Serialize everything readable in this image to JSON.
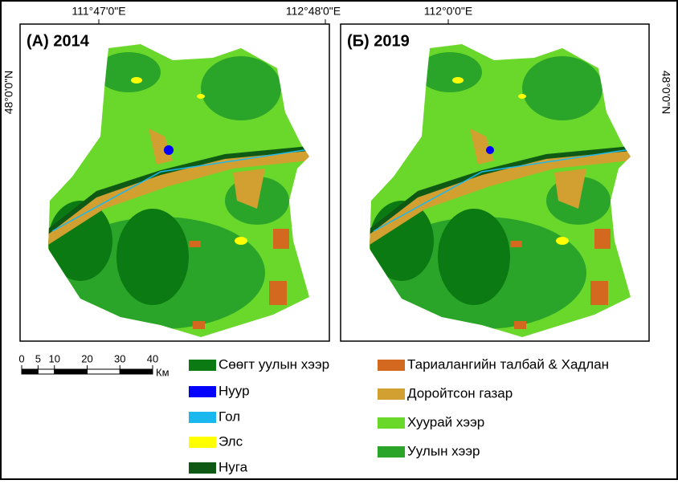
{
  "coordinates": {
    "top_a_left": "111°47'0\"E",
    "top_a_right": "112°48'0\"E",
    "top_b": "112°0'0\"E",
    "left": "48°0'0\"N",
    "right": "48°0'0\"N"
  },
  "panels": [
    {
      "title": "(А) 2014"
    },
    {
      "title": "(Б) 2019"
    }
  ],
  "scale_bar": {
    "ticks": [
      0,
      5,
      10,
      20,
      30,
      40
    ],
    "unit": "Км"
  },
  "legend": [
    {
      "label": "Сөөгт уулын хээр",
      "color": "#0b7a12"
    },
    {
      "label": "Нуур",
      "color": "#0000ff"
    },
    {
      "label": "Гол",
      "color": "#1ab8ee"
    },
    {
      "label": "Элс",
      "color": "#ffff00"
    },
    {
      "label": "Нуга",
      "color": "#0e5a14"
    },
    {
      "label": "Тариалангийн талбай & Хадлан",
      "color": "#d2691e"
    },
    {
      "label": "Доройтсон газар",
      "color": "#d2a030"
    },
    {
      "label": "Хуурай хээр",
      "color": "#6ad82a"
    },
    {
      "label": "Уулын хээр",
      "color": "#2aa52a"
    }
  ]
}
